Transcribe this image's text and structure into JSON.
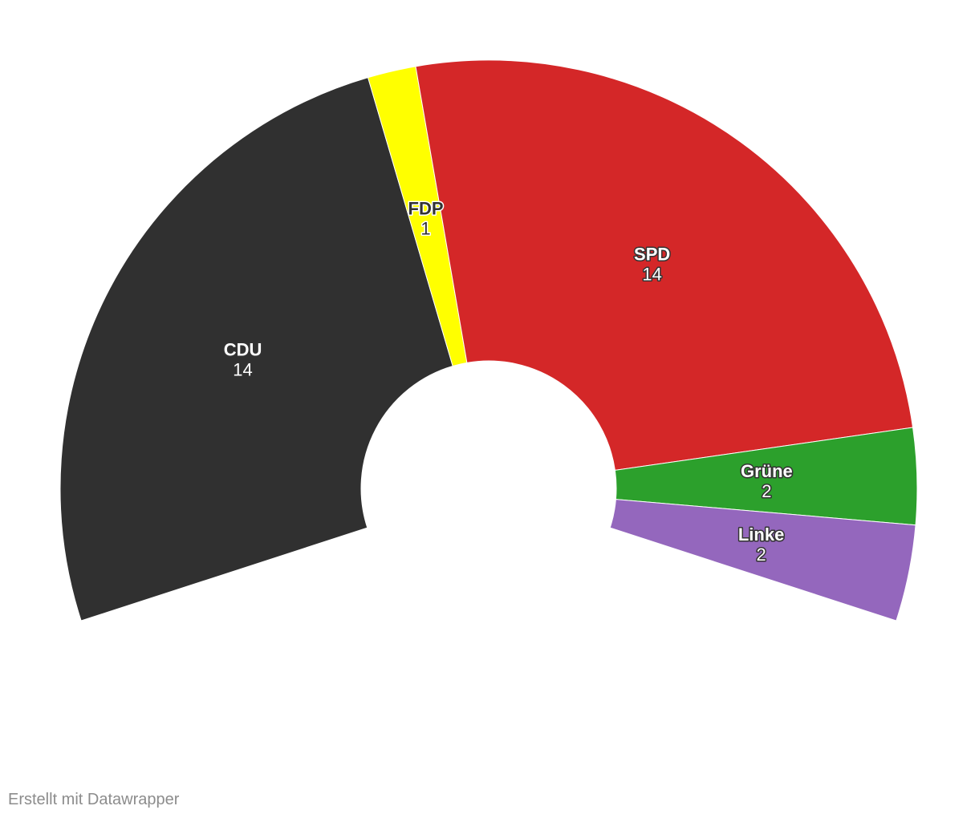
{
  "chart_data": {
    "type": "parliament",
    "categories": [
      "CDU",
      "FDP",
      "SPD",
      "Grüne",
      "Linke"
    ],
    "values": [
      14,
      1,
      14,
      2,
      2
    ],
    "colors": [
      "#303030",
      "#ffff00",
      "#d42728",
      "#2ca02c",
      "#9467bd"
    ],
    "footer": "Erstellt mit Datawrapper"
  }
}
